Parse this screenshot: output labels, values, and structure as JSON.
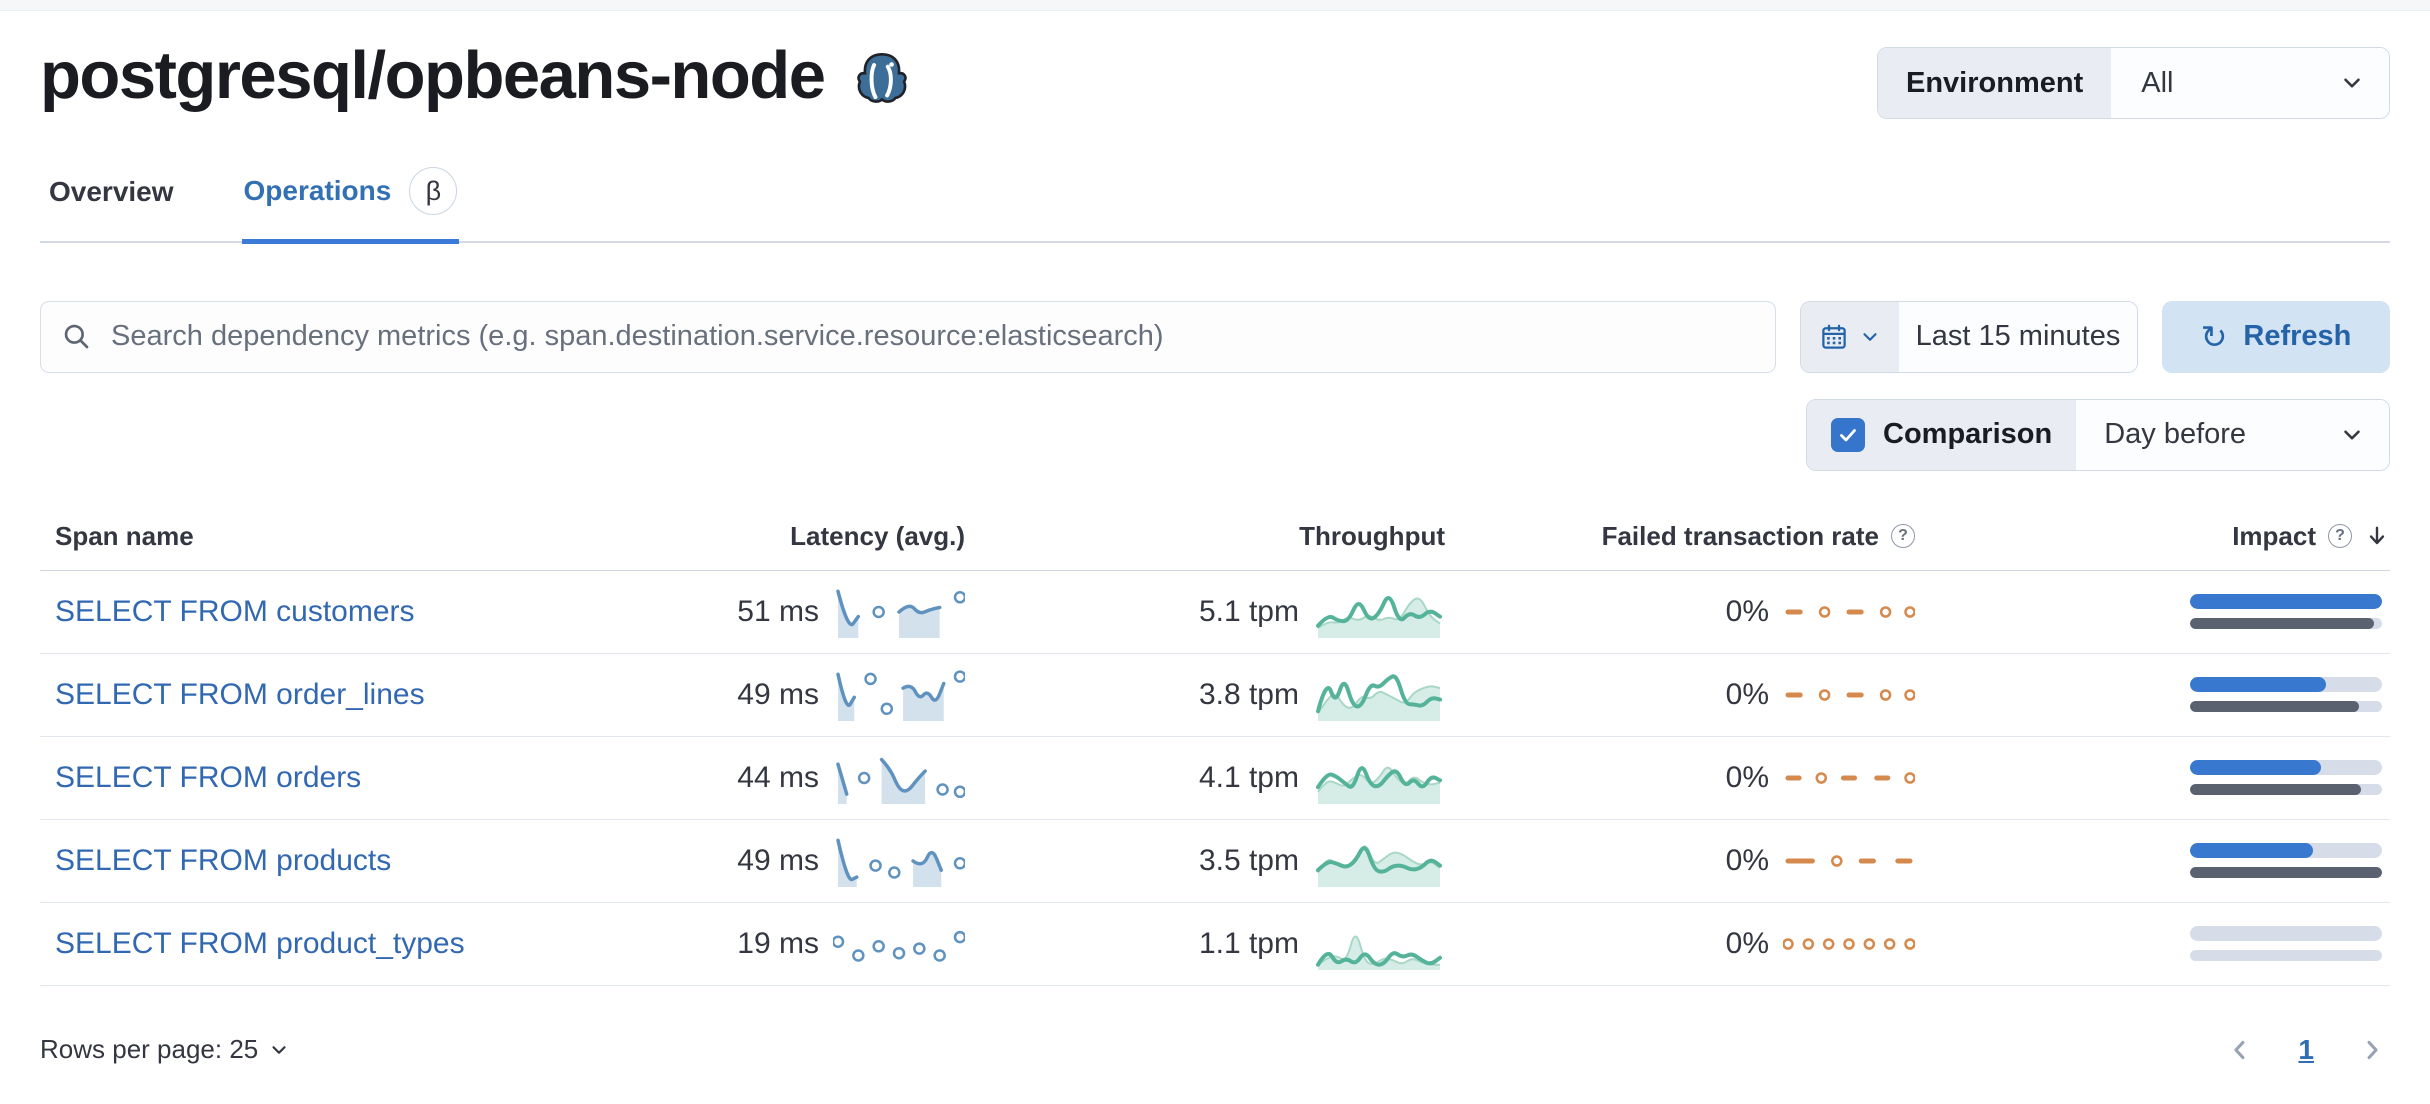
{
  "header": {
    "title": "postgresql/opbeans-node"
  },
  "environment": {
    "label": "Environment",
    "value": "All"
  },
  "tabs": [
    {
      "label": "Overview"
    },
    {
      "label": "Operations",
      "badge": "β"
    }
  ],
  "toolbar": {
    "search_placeholder": "Search dependency metrics (e.g. span.destination.service.resource:elasticsearch)",
    "time_range": "Last 15 minutes",
    "refresh_label": "Refresh",
    "refresh_glyph": "↻",
    "comparison_label": "Comparison",
    "comparison_value": "Day before"
  },
  "icons": {
    "help_glyph": "?",
    "beta_glyph": "β"
  },
  "colors": {
    "link": "#3268B2",
    "latency_series": "#6092C0",
    "throughput_series": "#54B399",
    "failed_series": "#D6894C",
    "impact_current": "#3878CE",
    "impact_previous": "#5A6270",
    "accent_blue": "#2563A8"
  },
  "table": {
    "headers": {
      "span": "Span name",
      "latency": "Latency (avg.)",
      "throughput": "Throughput",
      "failed": "Failed transaction rate",
      "impact": "Impact"
    },
    "rows": [
      {
        "name": "SELECT FROM customers",
        "latency": "51 ms",
        "throughput": "5.1 tpm",
        "failed_rate": "0%",
        "impact": {
          "current": 100,
          "previous": 96
        },
        "latency_spark": {
          "fill": true,
          "main": [
            0.05,
            0.9,
            0.6,
            null,
            0.5,
            null,
            0.5,
            0.3,
            0.55,
            0.45,
            0.4,
            null,
            0.18
          ]
        },
        "throughput_spark": {
          "main": [
            0.8,
            0.55,
            0.7,
            0.7,
            0.2,
            0.7,
            0.55,
            0.05,
            0.75,
            0.5,
            0.65,
            0.45,
            0.6
          ],
          "comparison": [
            0.85,
            0.7,
            0.75,
            0.6,
            0.7,
            0.55,
            0.7,
            0.6,
            0.7,
            0.3,
            0.15,
            0.6,
            0.75
          ]
        },
        "failed_spark": {
          "main": [
            0.5,
            0.5,
            null,
            0.5,
            null,
            0.5,
            0.5,
            null,
            0.5,
            null,
            0.5
          ]
        }
      },
      {
        "name": "SELECT FROM order_lines",
        "latency": "49 ms",
        "throughput": "3.8 tpm",
        "failed_rate": "0%",
        "impact": {
          "current": 71,
          "previous": 88
        },
        "latency_spark": {
          "fill": true,
          "main": [
            0.05,
            0.85,
            0.55,
            null,
            0.15,
            null,
            0.8,
            null,
            0.35,
            0.25,
            0.6,
            0.4,
            0.7,
            0.25,
            null,
            0.1
          ]
        },
        "throughput_spark": {
          "main": [
            0.85,
            0.15,
            0.7,
            0.1,
            0.75,
            0.75,
            0.25,
            0.35,
            0.15,
            0.05,
            0.7,
            0.7,
            0.75,
            0.55,
            0.6
          ],
          "comparison": [
            0.9,
            0.6,
            0.45,
            0.75,
            0.8,
            0.5,
            0.6,
            0.4,
            0.5,
            0.6,
            0.7,
            0.45,
            0.35,
            0.3,
            0.35
          ]
        },
        "failed_spark": {
          "main": [
            0.5,
            0.5,
            null,
            0.5,
            null,
            0.5,
            0.5,
            null,
            0.5,
            null,
            0.5
          ]
        }
      },
      {
        "name": "SELECT FROM orders",
        "latency": "44 ms",
        "throughput": "4.1 tpm",
        "failed_rate": "0%",
        "impact": {
          "current": 68,
          "previous": 89
        },
        "latency_spark": {
          "fill": true,
          "main": [
            0.2,
            0.85,
            null,
            0.5,
            null,
            0.1,
            0.3,
            0.75,
            0.8,
            0.55,
            0.35,
            null,
            0.75,
            null,
            0.8
          ]
        },
        "throughput_spark": {
          "main": [
            0.7,
            0.4,
            0.45,
            0.6,
            0.75,
            0.15,
            0.65,
            0.7,
            0.45,
            0.3,
            0.7,
            0.5,
            0.75,
            0.45,
            0.55
          ],
          "comparison": [
            0.8,
            0.55,
            0.6,
            0.7,
            0.5,
            0.4,
            0.65,
            0.5,
            0.2,
            0.5,
            0.65,
            0.45,
            0.6,
            0.65,
            0.6
          ]
        },
        "failed_spark": {
          "main": [
            0.5,
            0.5,
            null,
            0.5,
            null,
            0.5,
            0.5,
            null,
            0.5,
            0.5,
            null,
            0.5
          ]
        }
      },
      {
        "name": "SELECT FROM products",
        "latency": "49 ms",
        "throughput": "3.5 tpm",
        "failed_rate": "0%",
        "impact": {
          "current": 64,
          "previous": 100
        },
        "latency_spark": {
          "fill": true,
          "main": [
            0.05,
            0.95,
            0.85,
            null,
            0.6,
            null,
            0.75,
            null,
            0.5,
            0.65,
            0.2,
            0.7,
            null,
            0.55
          ]
        },
        "throughput_spark": {
          "main": [
            0.7,
            0.5,
            0.55,
            0.65,
            0.5,
            0.1,
            0.7,
            0.75,
            0.6,
            0.6,
            0.7,
            0.65,
            0.45,
            0.6
          ],
          "comparison": [
            0.75,
            0.4,
            0.6,
            0.65,
            0.55,
            0.05,
            0.6,
            0.45,
            0.3,
            0.35,
            0.5,
            0.6,
            0.5,
            0.65
          ]
        },
        "failed_spark": {
          "main": [
            0.5,
            0.5,
            0.5,
            null,
            0.5,
            null,
            0.5,
            0.5,
            null,
            0.5,
            0.5
          ]
        }
      },
      {
        "name": "SELECT FROM product_types",
        "latency": "19 ms",
        "throughput": "1.1 tpm",
        "failed_rate": "0%",
        "impact": {
          "current": 0,
          "previous": 0
        },
        "latency_spark": {
          "fill": false,
          "main": [
            0.45,
            null,
            0.75,
            null,
            0.55,
            null,
            0.7,
            null,
            0.6,
            null,
            0.75,
            null,
            0.35
          ]
        },
        "throughput_spark": {
          "main": [
            0.95,
            0.6,
            0.95,
            0.8,
            0.95,
            0.65,
            0.95,
            0.95,
            0.65,
            0.8,
            0.7,
            0.85,
            0.95,
            0.8
          ],
          "comparison": [
            0.95,
            0.8,
            0.75,
            0.9,
            0.15,
            0.9,
            0.95,
            0.8,
            0.85,
            0.95,
            0.8,
            0.9,
            0.95,
            0.95
          ]
        },
        "failed_spark": {
          "main": [
            0.5,
            null,
            0.5,
            null,
            0.5,
            null,
            0.5,
            null,
            0.5,
            null,
            0.5,
            null,
            0.5
          ]
        }
      }
    ]
  },
  "footer": {
    "rows_per_page": "Rows per page: 25",
    "page": "1"
  }
}
